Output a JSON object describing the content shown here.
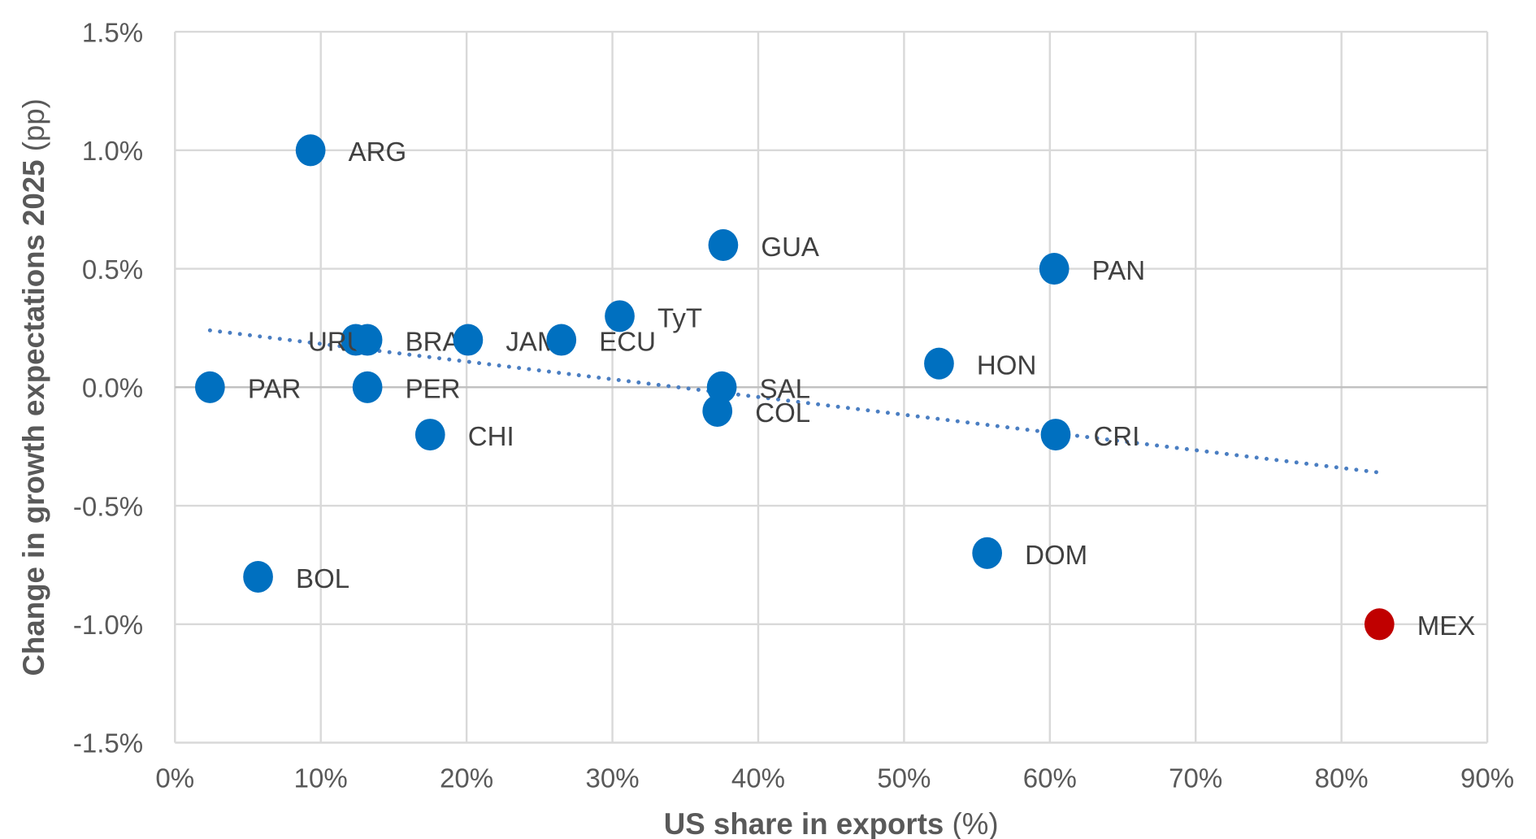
{
  "chart_data": {
    "type": "scatter",
    "xlabel_bold": "US share in exports",
    "xlabel_unit": " (%)",
    "ylabel_bold": "Change in growth expectations 2025",
    "ylabel_unit": " (pp)",
    "xlim": [
      0,
      90
    ],
    "ylim": [
      -1.5,
      1.5
    ],
    "grid": true,
    "x_ticks": [
      0,
      10,
      20,
      30,
      40,
      50,
      60,
      70,
      80,
      90
    ],
    "x_tick_labels": [
      "0%",
      "10%",
      "20%",
      "30%",
      "40%",
      "50%",
      "60%",
      "70%",
      "80%",
      "90%"
    ],
    "y_ticks": [
      1.5,
      1.0,
      0.5,
      0.0,
      -0.5,
      -1.0,
      -1.5
    ],
    "y_tick_labels": [
      "1.5%",
      "1.0%",
      "0.5%",
      "0.0%",
      "-0.5%",
      "-1.0%",
      "-1.5%"
    ],
    "colors": {
      "default": "#0070C0",
      "highlight": "#C00000",
      "trend": "#4A7EC2",
      "grid": "#D9D9D9"
    },
    "points": [
      {
        "label": "ARG",
        "x": 9.3,
        "y": 1.0
      },
      {
        "label": "GUA",
        "x": 37.6,
        "y": 0.6
      },
      {
        "label": "PAN",
        "x": 60.3,
        "y": 0.5
      },
      {
        "label": "TyT",
        "x": 30.5,
        "y": 0.3
      },
      {
        "label": "URU",
        "x": 12.4,
        "y": 0.2
      },
      {
        "label": "BRA",
        "x": 13.2,
        "y": 0.2
      },
      {
        "label": "JAM",
        "x": 20.1,
        "y": 0.2
      },
      {
        "label": "ECU",
        "x": 26.5,
        "y": 0.2
      },
      {
        "label": "HON",
        "x": 52.4,
        "y": 0.1
      },
      {
        "label": "PAR",
        "x": 2.4,
        "y": 0.0
      },
      {
        "label": "PER",
        "x": 13.2,
        "y": 0.0
      },
      {
        "label": "SAL",
        "x": 37.5,
        "y": 0.0
      },
      {
        "label": "COL",
        "x": 37.2,
        "y": -0.1
      },
      {
        "label": "CHI",
        "x": 17.5,
        "y": -0.2
      },
      {
        "label": "CRI",
        "x": 60.4,
        "y": -0.2
      },
      {
        "label": "DOM",
        "x": 55.7,
        "y": -0.7
      },
      {
        "label": "BOL",
        "x": 5.7,
        "y": -0.8
      },
      {
        "label": "MEX",
        "x": 82.6,
        "y": -1.0,
        "highlight": true
      }
    ],
    "trendline": {
      "style": "dotted",
      "x": [
        2.4,
        82.6
      ],
      "y": [
        0.24,
        -0.36
      ]
    }
  }
}
